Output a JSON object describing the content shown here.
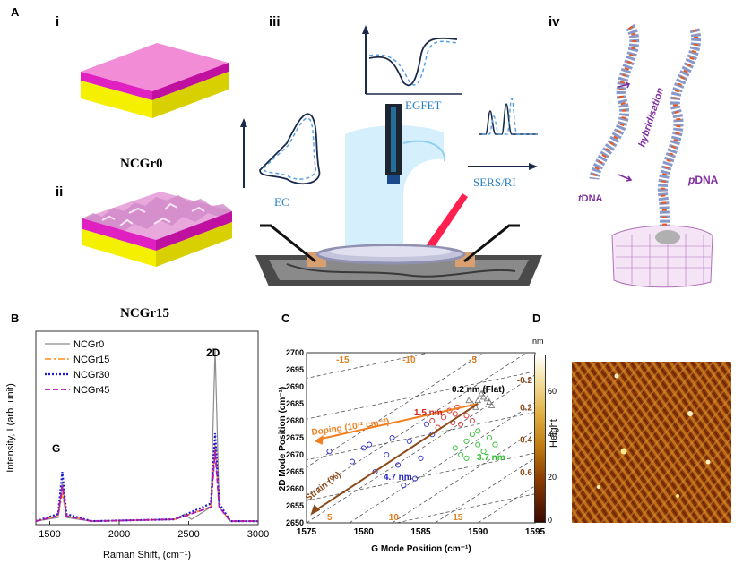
{
  "panels": {
    "A": "A",
    "B": "B",
    "C": "C",
    "D": "D"
  },
  "panelA": {
    "sub": {
      "i": "i",
      "ii": "ii",
      "iii": "iii",
      "iv": "iv"
    },
    "ncgr0": "NCGr0",
    "ncgr15": "NCGr15",
    "ec": "EC",
    "egfet": "EGFET",
    "sers": "SERS/RI",
    "hybridisation": "hybridisation",
    "tdna_prefix": "t",
    "pdna_prefix": "p",
    "dna_suffix": "DNA"
  },
  "panelB": {
    "ylabel": "Intensity, I (arb. unit)",
    "xlabel": "Raman Shift, (cm⁻¹)",
    "peakG": "G",
    "peak2D": "2D",
    "xticks": [
      "1500",
      "2000",
      "2500",
      "3000"
    ],
    "legend": [
      "NCGr0",
      "NCGr15",
      "NCGr30",
      "NCGr45"
    ],
    "colors": [
      "#8c8c8c",
      "#ff8c1a",
      "#1a1acc",
      "#b01ab0"
    ]
  },
  "panelC": {
    "ylabel": "2D Mode Position (cm⁻¹)",
    "xlabel": "G Mode Position (cm⁻¹)",
    "xticks": [
      "1575",
      "1580",
      "1585",
      "1590",
      "1595"
    ],
    "yticks": [
      "2650",
      "2655",
      "2660",
      "2665",
      "2670",
      "2675",
      "2680",
      "2685",
      "2690",
      "2695",
      "2700"
    ],
    "strainTop": [
      "-15",
      "-10",
      "-5"
    ],
    "strainBottom": [
      "5",
      "10",
      "15"
    ],
    "dopingRight": [
      "-0.2",
      "0.2",
      "0.4",
      "0.6"
    ],
    "ann": {
      "flat": "0.2 nm (Flat)",
      "r15": "1.5 nm",
      "r37": "3.7 nm",
      "r47": "4.7 nm",
      "doping": "Doping (10¹² cm⁻²)",
      "strain": "Strain (%)"
    }
  },
  "panelD": {
    "unit": "nm",
    "label": "Height",
    "ticks": [
      "0",
      "20",
      "40",
      "60"
    ]
  },
  "chart_data": [
    {
      "type": "line",
      "title": "",
      "xlabel": "Raman Shift, (cm⁻¹)",
      "ylabel": "Intensity, I (arb. unit)",
      "xlim": [
        1400,
        3000
      ],
      "ylim": [
        0,
        1.1
      ],
      "series": [
        {
          "name": "NCGr0",
          "x": [
            1400,
            1560,
            1590,
            1620,
            1800,
            2400,
            2470,
            2520,
            2660,
            2690,
            2720,
            2800,
            3000
          ],
          "y": [
            0.02,
            0.04,
            0.24,
            0.04,
            0.02,
            0.03,
            0.06,
            0.03,
            0.1,
            1.0,
            0.1,
            0.02,
            0.02
          ]
        },
        {
          "name": "NCGr15",
          "x": [
            1400,
            1560,
            1590,
            1620,
            1800,
            2400,
            2660,
            2690,
            2720,
            2800,
            3000
          ],
          "y": [
            0.02,
            0.05,
            0.18,
            0.05,
            0.02,
            0.03,
            0.1,
            0.45,
            0.1,
            0.02,
            0.02
          ]
        },
        {
          "name": "NCGr30",
          "x": [
            1400,
            1560,
            1590,
            1620,
            1800,
            2400,
            2660,
            2690,
            2720,
            2800,
            3000
          ],
          "y": [
            0.02,
            0.06,
            0.3,
            0.06,
            0.02,
            0.03,
            0.12,
            0.52,
            0.12,
            0.02,
            0.02
          ]
        },
        {
          "name": "NCGr45",
          "x": [
            1400,
            1560,
            1590,
            1620,
            1800,
            2400,
            2660,
            2690,
            2720,
            2800,
            3000
          ],
          "y": [
            0.02,
            0.05,
            0.22,
            0.05,
            0.02,
            0.03,
            0.1,
            0.42,
            0.1,
            0.02,
            0.02
          ]
        }
      ]
    },
    {
      "type": "scatter",
      "title": "",
      "xlabel": "G Mode Position (cm⁻¹)",
      "ylabel": "2D Mode Position (cm⁻¹)",
      "xlim": [
        1575,
        1595
      ],
      "ylim": [
        2650,
        2700
      ],
      "series": [
        {
          "name": "0.2 nm (Flat)",
          "x": [
            1589.5,
            1590,
            1590.5,
            1591,
            1589.8,
            1590.3,
            1590.8,
            1591.2,
            1589.2,
            1590.6
          ],
          "y": [
            2685,
            2686,
            2687,
            2685.5,
            2684,
            2688,
            2686.5,
            2684.5,
            2686,
            2689
          ]
        },
        {
          "name": "1.5 nm",
          "x": [
            1586,
            1587,
            1588,
            1588.5,
            1589,
            1587.5,
            1586.5,
            1588.2,
            1589.5,
            1587.8
          ],
          "y": [
            2680,
            2681,
            2682,
            2679,
            2681.5,
            2683,
            2678,
            2684,
            2680,
            2679.5
          ]
        },
        {
          "name": "3.7 nm",
          "x": [
            1588,
            1589,
            1590,
            1591,
            1589.5,
            1590.5,
            1588.5,
            1591.5,
            1590,
            1589
          ],
          "y": [
            2672,
            2674,
            2673,
            2675,
            2676,
            2671,
            2670,
            2673,
            2677,
            2669
          ]
        },
        {
          "name": "4.7 nm",
          "x": [
            1577,
            1579,
            1580,
            1581,
            1582,
            1583,
            1584,
            1585,
            1586,
            1584.5,
            1582.5,
            1580.5,
            1585.5,
            1583.5
          ],
          "y": [
            2671,
            2668,
            2672,
            2665,
            2670,
            2667,
            2674,
            2669,
            2676,
            2663,
            2675,
            2673,
            2679,
            2661
          ]
        }
      ]
    }
  ]
}
